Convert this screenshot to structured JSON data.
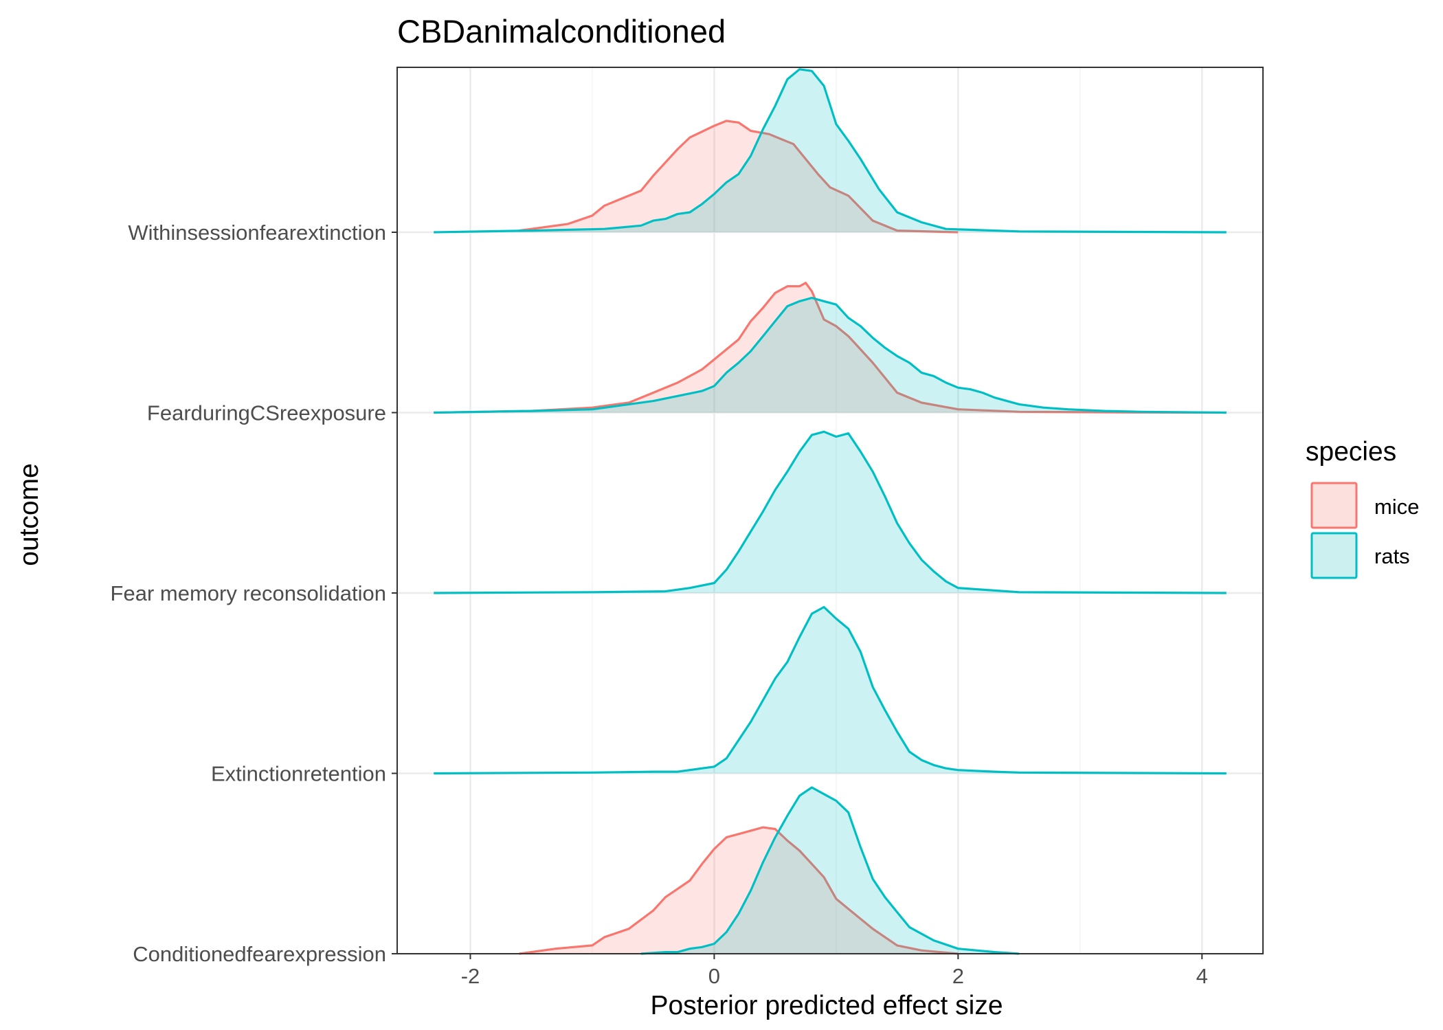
{
  "chart_data": {
    "type": "ridgeline-density",
    "title": "CBDanimalconditioned",
    "xlabel": "Posterior predicted effect size",
    "ylabel": "outcome",
    "xlim": [
      -2.6,
      4.5
    ],
    "x_ticks": [
      -2,
      0,
      2,
      4
    ],
    "x_tick_labels": [
      "-2",
      "0",
      "2",
      "4"
    ],
    "grid": true,
    "categories": [
      "Conditionedfearexpression",
      "Extinctionretention",
      "Fear memory reconsolidation",
      "FearduringCSreexposure",
      "Withinsessionfearextinction"
    ],
    "legend": {
      "title": "species",
      "position": "right",
      "entries": [
        "mice",
        "rats"
      ]
    },
    "colors": {
      "mice": "#F8766D",
      "mice_fill": "#FCE0DE",
      "rats": "#00BFC4",
      "rats_fill": "#CCEFF0",
      "overlap_fill": "#C9DCDB"
    },
    "series": [
      {
        "name": "mice",
        "category": "Withinsessionfearextinction",
        "x": [
          -1.6,
          -1.2,
          -1.0,
          -0.9,
          -0.8,
          -0.6,
          -0.5,
          -0.4,
          -0.3,
          -0.2,
          0.0,
          0.1,
          0.2,
          0.3,
          0.45,
          0.55,
          0.65,
          0.85,
          0.95,
          1.1,
          1.3,
          1.5,
          2.0
        ],
        "y": [
          0.01,
          0.05,
          0.1,
          0.16,
          0.19,
          0.25,
          0.34,
          0.42,
          0.5,
          0.57,
          0.64,
          0.67,
          0.66,
          0.61,
          0.59,
          0.56,
          0.53,
          0.35,
          0.27,
          0.22,
          0.07,
          0.01,
          0.0
        ]
      },
      {
        "name": "rats",
        "category": "Withinsessionfearextinction",
        "x": [
          -2.3,
          -1.5,
          -0.9,
          -0.6,
          -0.5,
          -0.4,
          -0.3,
          -0.2,
          -0.1,
          0.0,
          0.1,
          0.2,
          0.3,
          0.4,
          0.5,
          0.6,
          0.7,
          0.8,
          0.9,
          1.0,
          1.1,
          1.2,
          1.35,
          1.5,
          1.7,
          1.9,
          2.5,
          4.2
        ],
        "y": [
          0.0,
          0.01,
          0.02,
          0.04,
          0.07,
          0.08,
          0.11,
          0.12,
          0.17,
          0.23,
          0.3,
          0.35,
          0.46,
          0.62,
          0.76,
          0.92,
          0.98,
          0.97,
          0.88,
          0.65,
          0.55,
          0.44,
          0.26,
          0.12,
          0.06,
          0.02,
          0.005,
          0.0
        ]
      },
      {
        "name": "mice",
        "category": "FearduringCSreexposure",
        "x": [
          -2.3,
          -1.5,
          -1.0,
          -0.7,
          -0.5,
          -0.3,
          -0.1,
          0.0,
          0.1,
          0.2,
          0.3,
          0.4,
          0.5,
          0.6,
          0.7,
          0.75,
          0.8,
          0.9,
          1.0,
          1.1,
          1.2,
          1.3,
          1.5,
          1.7,
          2.0,
          2.5,
          3.5,
          4.2
        ],
        "y": [
          0.0,
          0.01,
          0.03,
          0.06,
          0.12,
          0.18,
          0.26,
          0.32,
          0.38,
          0.44,
          0.55,
          0.63,
          0.72,
          0.76,
          0.76,
          0.78,
          0.73,
          0.56,
          0.52,
          0.46,
          0.38,
          0.3,
          0.12,
          0.06,
          0.02,
          0.005,
          0.001,
          0.0
        ]
      },
      {
        "name": "rats",
        "category": "FearduringCSreexposure",
        "x": [
          -2.3,
          -1.5,
          -1.0,
          -0.7,
          -0.5,
          -0.3,
          -0.1,
          0.0,
          0.1,
          0.2,
          0.3,
          0.4,
          0.5,
          0.6,
          0.7,
          0.8,
          0.9,
          1.0,
          1.1,
          1.2,
          1.3,
          1.4,
          1.5,
          1.6,
          1.7,
          1.8,
          1.9,
          2.0,
          2.1,
          2.2,
          2.3,
          2.5,
          2.7,
          2.9,
          3.2,
          3.5,
          4.2
        ],
        "y": [
          0.0,
          0.01,
          0.02,
          0.05,
          0.07,
          0.1,
          0.13,
          0.16,
          0.24,
          0.3,
          0.37,
          0.46,
          0.55,
          0.64,
          0.67,
          0.69,
          0.67,
          0.65,
          0.57,
          0.52,
          0.45,
          0.39,
          0.34,
          0.3,
          0.24,
          0.22,
          0.18,
          0.15,
          0.14,
          0.12,
          0.09,
          0.05,
          0.03,
          0.02,
          0.01,
          0.005,
          0.0
        ]
      },
      {
        "name": "rats",
        "category": "Fear memory reconsolidation",
        "x": [
          -2.3,
          -1.0,
          -0.4,
          -0.2,
          0.0,
          0.1,
          0.2,
          0.3,
          0.4,
          0.5,
          0.6,
          0.7,
          0.8,
          0.9,
          1.0,
          1.1,
          1.2,
          1.3,
          1.4,
          1.5,
          1.6,
          1.7,
          1.8,
          1.9,
          2.0,
          2.5,
          4.2
        ],
        "y": [
          0.0,
          0.005,
          0.01,
          0.03,
          0.06,
          0.14,
          0.25,
          0.37,
          0.49,
          0.62,
          0.73,
          0.85,
          0.95,
          0.97,
          0.94,
          0.96,
          0.85,
          0.73,
          0.58,
          0.42,
          0.3,
          0.2,
          0.13,
          0.07,
          0.03,
          0.005,
          0.0
        ]
      },
      {
        "name": "rats",
        "category": "Extinctionretention",
        "x": [
          -2.3,
          -1.0,
          -0.5,
          -0.3,
          -0.1,
          0.0,
          0.1,
          0.2,
          0.3,
          0.4,
          0.5,
          0.6,
          0.7,
          0.8,
          0.9,
          1.0,
          1.1,
          1.2,
          1.3,
          1.4,
          1.5,
          1.6,
          1.7,
          1.8,
          1.9,
          2.0,
          2.3,
          2.5,
          4.2
        ],
        "y": [
          0.0,
          0.005,
          0.01,
          0.01,
          0.03,
          0.04,
          0.09,
          0.2,
          0.31,
          0.44,
          0.57,
          0.67,
          0.82,
          0.96,
          1.0,
          0.93,
          0.87,
          0.73,
          0.52,
          0.38,
          0.25,
          0.13,
          0.08,
          0.05,
          0.03,
          0.02,
          0.01,
          0.005,
          0.0
        ]
      },
      {
        "name": "mice",
        "category": "Conditionedfearexpression",
        "x": [
          -1.6,
          -1.3,
          -1.0,
          -0.9,
          -0.7,
          -0.5,
          -0.4,
          -0.2,
          -0.1,
          0.0,
          0.1,
          0.2,
          0.3,
          0.4,
          0.5,
          0.6,
          0.7,
          0.8,
          0.9,
          1.0,
          1.1,
          1.3,
          1.5,
          1.7,
          2.0
        ],
        "y": [
          0.0,
          0.03,
          0.05,
          0.1,
          0.15,
          0.26,
          0.34,
          0.44,
          0.54,
          0.63,
          0.7,
          0.72,
          0.74,
          0.76,
          0.75,
          0.68,
          0.62,
          0.54,
          0.46,
          0.33,
          0.27,
          0.15,
          0.05,
          0.02,
          0.0
        ]
      },
      {
        "name": "rats",
        "category": "Conditionedfearexpression",
        "x": [
          -0.6,
          -0.4,
          -0.3,
          -0.2,
          -0.1,
          0.0,
          0.1,
          0.2,
          0.3,
          0.4,
          0.5,
          0.6,
          0.7,
          0.8,
          0.9,
          1.0,
          1.1,
          1.2,
          1.3,
          1.4,
          1.5,
          1.6,
          1.8,
          2.0,
          2.3,
          2.5
        ],
        "y": [
          0.0,
          0.01,
          0.01,
          0.03,
          0.04,
          0.06,
          0.13,
          0.24,
          0.38,
          0.55,
          0.7,
          0.83,
          0.95,
          1.0,
          0.96,
          0.92,
          0.85,
          0.64,
          0.45,
          0.34,
          0.25,
          0.16,
          0.08,
          0.03,
          0.01,
          0.0
        ]
      }
    ]
  }
}
